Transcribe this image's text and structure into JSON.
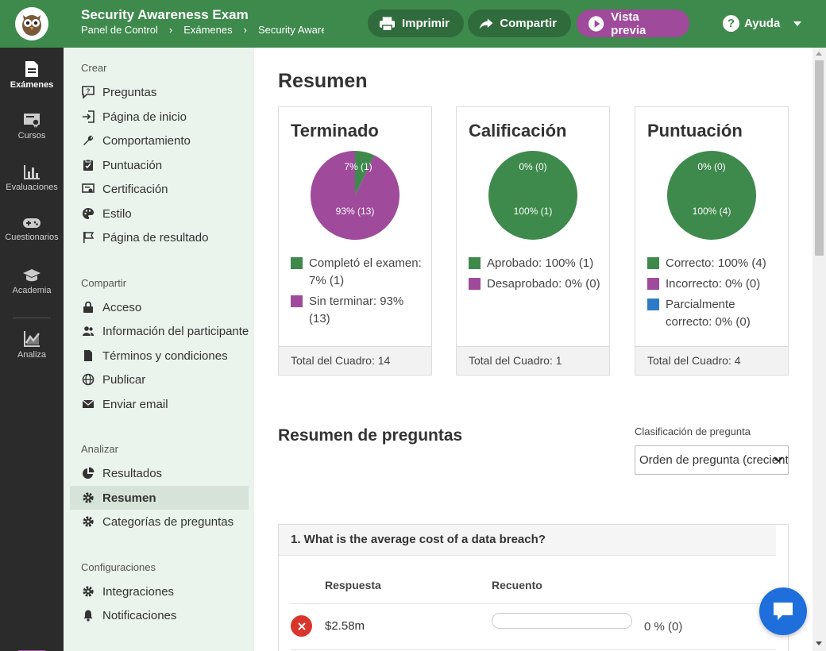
{
  "header": {
    "title": "Security Awareness Exam",
    "breadcrumb": [
      "Panel de Control",
      "Exámenes",
      "Security Awareness Exam"
    ],
    "print_label": "Imprimir",
    "share_label": "Compartir",
    "preview_label": "Vista previa",
    "help_label": "Ayuda"
  },
  "rail": {
    "items": [
      {
        "label": "Exámenes",
        "icon": "document-icon"
      },
      {
        "label": "Cursos",
        "icon": "certificate-icon"
      },
      {
        "label": "Evaluaciones",
        "icon": "bar-chart-icon"
      },
      {
        "label": "Cuestionarios",
        "icon": "gamepad-icon"
      },
      {
        "label": "Academia",
        "icon": "graduation-cap-icon"
      },
      {
        "label": "Analiza",
        "icon": "line-chart-icon"
      }
    ]
  },
  "sidebar": {
    "sections": [
      {
        "title": "Crear",
        "items": [
          {
            "label": "Preguntas",
            "icon": "question-comment-icon"
          },
          {
            "label": "Página de inicio",
            "icon": "sign-in-icon"
          },
          {
            "label": "Comportamiento",
            "icon": "wrench-icon"
          },
          {
            "label": "Puntuación",
            "icon": "clipboard-check-icon"
          },
          {
            "label": "Certificación",
            "icon": "certificate-icon"
          },
          {
            "label": "Estilo",
            "icon": "palette-icon"
          },
          {
            "label": "Página de resultado",
            "icon": "flag-icon"
          }
        ]
      },
      {
        "title": "Compartir",
        "items": [
          {
            "label": "Acceso",
            "icon": "lock-icon"
          },
          {
            "label": "Información del participante",
            "icon": "users-icon"
          },
          {
            "label": "Términos y condiciones",
            "icon": "file-icon"
          },
          {
            "label": "Publicar",
            "icon": "globe-icon"
          },
          {
            "label": "Enviar email",
            "icon": "envelope-icon"
          }
        ]
      },
      {
        "title": "Analizar",
        "items": [
          {
            "label": "Resultados",
            "icon": "pie-chart-icon"
          },
          {
            "label": "Resumen",
            "icon": "gear-icon"
          },
          {
            "label": "Categorías de preguntas",
            "icon": "gear-icon"
          }
        ]
      },
      {
        "title": "Configuraciones",
        "items": [
          {
            "label": "Integraciones",
            "icon": "gear-icon"
          },
          {
            "label": "Notificaciones",
            "icon": "bell-icon"
          }
        ]
      }
    ]
  },
  "main": {
    "title": "Resumen",
    "cards": [
      {
        "title": "Terminado",
        "slices": [
          {
            "label": "7% (1)",
            "value": 1,
            "color": "#3e8a4c"
          },
          {
            "label": "93% (13)",
            "value": 13,
            "color": "#a04a9c"
          }
        ],
        "legend": [
          {
            "text": "Completó el examen: 7% (1)",
            "color": "#3e8a4c"
          },
          {
            "text": "Sin terminar: 93% (13)",
            "color": "#a04a9c"
          }
        ],
        "footer": "Total del Cuadro: 14"
      },
      {
        "title": "Calificación",
        "slices": [
          {
            "label": "0% (0)",
            "value": 0,
            "color": "#a04a9c"
          },
          {
            "label": "100% (1)",
            "value": 1,
            "color": "#3e8a4c"
          }
        ],
        "legend": [
          {
            "text": "Aprobado: 100% (1)",
            "color": "#3e8a4c"
          },
          {
            "text": "Desaprobado: 0% (0)",
            "color": "#a04a9c"
          }
        ],
        "footer": "Total del Cuadro: 1"
      },
      {
        "title": "Puntuación",
        "slices": [
          {
            "label": "0% (0)",
            "value": 0,
            "color": "#a04a9c"
          },
          {
            "label": "100% (4)",
            "value": 4,
            "color": "#3e8a4c"
          }
        ],
        "legend": [
          {
            "text": "Correcto: 100% (4)",
            "color": "#3e8a4c"
          },
          {
            "text": "Incorrecto: 0% (0)",
            "color": "#a04a9c"
          },
          {
            "text": "Parcialmente correcto: 0% (0)",
            "color": "#2f7ac8"
          }
        ],
        "footer": "Total del Cuadro: 4"
      }
    ],
    "questions_title": "Resumen de preguntas",
    "sort_label": "Clasificación de pregunta",
    "sort_value": "Orden de pregunta (creciente)",
    "question": {
      "title": "1. What is the average cost of a data breach?",
      "col_answer": "Respuesta",
      "col_count": "Recuento",
      "answers": [
        {
          "text": "$2.58m",
          "percent": 0,
          "count_label": "0 % (0)"
        }
      ]
    }
  },
  "chart_data": [
    {
      "type": "pie",
      "title": "Terminado",
      "categories": [
        "Completó el examen",
        "Sin terminar"
      ],
      "values": [
        1,
        13
      ]
    },
    {
      "type": "pie",
      "title": "Calificación",
      "categories": [
        "Aprobado",
        "Desaprobado"
      ],
      "values": [
        1,
        0
      ]
    },
    {
      "type": "pie",
      "title": "Puntuación",
      "categories": [
        "Correcto",
        "Incorrecto",
        "Parcialmente correcto"
      ],
      "values": [
        4,
        0,
        0
      ]
    }
  ]
}
